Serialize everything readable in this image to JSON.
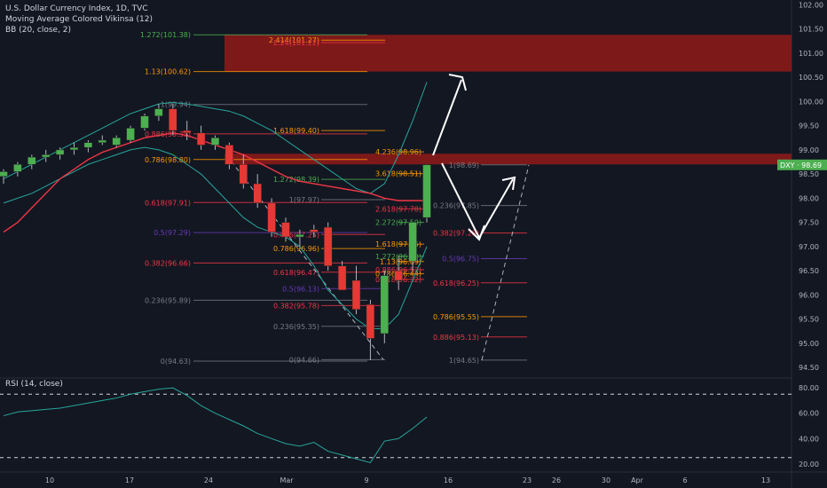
{
  "legend": {
    "line1": "U.S. Dollar Currency Index, 1D, TVC",
    "line2": "Moving Average Colored Vikinsa (12)",
    "line3": "BB (20, close, 2)"
  },
  "rsi": {
    "label": "RSI (14, close)"
  },
  "colors": {
    "bg": "#131722",
    "up": "#4caf50",
    "down": "#e53935",
    "price_tag": "#4caf50"
  },
  "chart_data": [
    {
      "type": "candlestick",
      "symbol": "DXY",
      "price_tag": "DXY · 98.69",
      "last": 98.69,
      "y_ticks": [
        "102.00",
        "101.50",
        "101.00",
        "100.50",
        "100.00",
        "99.50",
        "99.00",
        "98.50",
        "98.00",
        "97.50",
        "97.00",
        "96.50",
        "96.00",
        "95.50",
        "95.00",
        "94.50"
      ],
      "x_ticks": [
        "10",
        "17",
        "24",
        "Mar",
        "9",
        "16",
        "23",
        "26",
        "30",
        "Apr",
        "6",
        "13"
      ],
      "ohlc": [
        [
          98.45,
          98.6,
          98.3,
          98.55
        ],
        [
          98.55,
          98.75,
          98.45,
          98.7
        ],
        [
          98.7,
          98.9,
          98.6,
          98.85
        ],
        [
          98.85,
          99.0,
          98.75,
          98.9
        ],
        [
          98.9,
          99.05,
          98.8,
          99.0
        ],
        [
          99.0,
          99.15,
          98.9,
          99.05
        ],
        [
          99.05,
          99.2,
          98.95,
          99.15
        ],
        [
          99.15,
          99.3,
          99.1,
          99.2
        ],
        [
          99.1,
          99.3,
          99.05,
          99.25
        ],
        [
          99.2,
          99.5,
          99.15,
          99.45
        ],
        [
          99.45,
          99.75,
          99.4,
          99.7
        ],
        [
          99.7,
          99.95,
          99.6,
          99.85
        ],
        [
          99.85,
          99.95,
          99.3,
          99.4
        ],
        [
          99.4,
          99.6,
          99.2,
          99.35
        ],
        [
          99.35,
          99.5,
          99.0,
          99.1
        ],
        [
          99.1,
          99.3,
          99.0,
          99.25
        ],
        [
          99.1,
          99.15,
          98.6,
          98.7
        ],
        [
          98.7,
          98.9,
          98.2,
          98.3
        ],
        [
          98.3,
          98.5,
          97.8,
          97.9
        ],
        [
          97.9,
          98.0,
          97.2,
          97.3
        ],
        [
          97.5,
          97.6,
          97.1,
          97.2
        ],
        [
          97.2,
          97.35,
          97.0,
          97.25
        ],
        [
          97.35,
          97.45,
          97.2,
          97.3
        ],
        [
          97.4,
          97.5,
          96.5,
          96.6
        ],
        [
          96.6,
          96.7,
          96.1,
          96.1
        ],
        [
          96.3,
          96.6,
          95.6,
          95.7
        ],
        [
          95.8,
          95.9,
          94.65,
          95.1
        ],
        [
          95.2,
          96.5,
          95.0,
          96.4
        ],
        [
          96.5,
          96.8,
          96.1,
          96.3
        ],
        [
          96.7,
          97.5,
          96.5,
          97.5
        ],
        [
          97.6,
          98.7,
          97.5,
          98.69
        ]
      ],
      "fib_left": [
        {
          "text": "1.272(101.38)",
          "value": 101.38,
          "color": "#4caf50"
        },
        {
          "text": "1.13(100.62)",
          "value": 100.62,
          "color": "#ff9800"
        },
        {
          "text": "1(99.94)",
          "value": 99.94,
          "color": "#787b86"
        },
        {
          "text": "0.886(99.33)",
          "value": 99.33,
          "color": "#f23645"
        },
        {
          "text": "0.786(98.80)",
          "value": 98.8,
          "color": "#ff9800"
        },
        {
          "text": "0.618(97.91)",
          "value": 97.91,
          "color": "#f23645"
        },
        {
          "text": "0.5(97.29)",
          "value": 97.29,
          "color": "#673ab7"
        },
        {
          "text": "0.382(96.66)",
          "value": 96.66,
          "color": "#f23645"
        },
        {
          "text": "0.236(95.89)",
          "value": 95.89,
          "color": "#787b86"
        },
        {
          "text": "0(94.63)",
          "value": 94.63,
          "color": "#787b86"
        }
      ],
      "fib_mid": [
        {
          "text": "2.414(101.27)",
          "value": 101.27,
          "color": "#ff9800"
        },
        {
          "text": "2.24(101.22)",
          "value": 101.22,
          "color": "#f23645"
        },
        {
          "text": "1.618(99.40)",
          "value": 99.4,
          "color": "#ff9800"
        },
        {
          "text": "1.272(98.39)",
          "value": 98.39,
          "color": "#4caf50"
        },
        {
          "text": "1(97.97)",
          "value": 97.97,
          "color": "#787b86"
        },
        {
          "text": "0.886(97.25)",
          "value": 97.25,
          "color": "#f23645"
        },
        {
          "text": "0.786(96.96)",
          "value": 96.96,
          "color": "#ff9800"
        },
        {
          "text": "0.618(96.47)",
          "value": 96.47,
          "color": "#f23645"
        },
        {
          "text": "0.5(96.13)",
          "value": 96.13,
          "color": "#673ab7"
        },
        {
          "text": "0.382(95.78)",
          "value": 95.78,
          "color": "#f23645"
        },
        {
          "text": "0.236(95.35)",
          "value": 95.35,
          "color": "#787b86"
        },
        {
          "text": "0(94.66)",
          "value": 94.66,
          "color": "#787b86"
        }
      ],
      "fib_right": [
        {
          "text": "4.236(98.96)",
          "value": 98.96,
          "color": "#ff9800"
        },
        {
          "text": "3.618(98.51)",
          "value": 98.51,
          "color": "#ff9800"
        },
        {
          "text": "2.618(97.78)",
          "value": 97.78,
          "color": "#f23645"
        },
        {
          "text": "2.272(97.50)",
          "value": 97.5,
          "color": "#4caf50"
        },
        {
          "text": "1.618(97.05)",
          "value": 97.05,
          "color": "#ff9800"
        },
        {
          "text": "1.272(96.80)",
          "value": 96.8,
          "color": "#4caf50"
        },
        {
          "text": "1.13(96.69)",
          "value": 96.69,
          "color": "#ff9800"
        },
        {
          "text": "0.886(96.52)",
          "value": 96.52,
          "color": "#f23645"
        },
        {
          "text": "0.786(96.44)",
          "value": 96.44,
          "color": "#ff9800"
        },
        {
          "text": "0.618(96.32)",
          "value": 96.32,
          "color": "#f23645"
        }
      ],
      "fib_proj": [
        {
          "text": "1(98.69)",
          "value": 98.69,
          "color": "#787b86"
        },
        {
          "text": "0.236(97.85)",
          "value": 97.85,
          "color": "#787b86"
        },
        {
          "text": "0.382(97.28)",
          "value": 97.28,
          "color": "#f23645"
        },
        {
          "text": "0.5(96.75)",
          "value": 96.75,
          "color": "#673ab7"
        },
        {
          "text": "0.618(96.25)",
          "value": 96.25,
          "color": "#f23645"
        },
        {
          "text": "0.786(95.55)",
          "value": 95.55,
          "color": "#ff9800"
        },
        {
          "text": "0.886(95.13)",
          "value": 95.13,
          "color": "#f23645"
        },
        {
          "text": "1(94.65)",
          "value": 94.65,
          "color": "#787b86"
        }
      ],
      "zones": [
        {
          "from": 100.62,
          "to": 101.38,
          "color": "#8b1a1a"
        },
        {
          "from": 98.7,
          "to": 98.92,
          "color": "#8b1a1a"
        }
      ],
      "ma_red": [
        97.3,
        97.5,
        97.8,
        98.1,
        98.4,
        98.6,
        98.8,
        98.95,
        99.05,
        99.15,
        99.25,
        99.3,
        99.35,
        99.3,
        99.2,
        99.1,
        99.0,
        98.9,
        98.75,
        98.6,
        98.45,
        98.35,
        98.3,
        98.25,
        98.2,
        98.15,
        98.1,
        98.0,
        97.95,
        97.95,
        97.95
      ],
      "bb_upper": [
        98.4,
        98.55,
        98.7,
        98.85,
        99.0,
        99.15,
        99.3,
        99.45,
        99.6,
        99.75,
        99.85,
        99.95,
        99.98,
        99.95,
        99.9,
        99.85,
        99.8,
        99.7,
        99.55,
        99.4,
        99.2,
        99.0,
        98.8,
        98.6,
        98.4,
        98.2,
        98.1,
        98.3,
        98.9,
        99.6,
        100.4
      ],
      "bb_lower": [
        97.9,
        98.0,
        98.1,
        98.25,
        98.4,
        98.55,
        98.7,
        98.8,
        98.9,
        99.0,
        99.05,
        99.0,
        98.9,
        98.7,
        98.5,
        98.2,
        97.9,
        97.6,
        97.4,
        97.3,
        97.2,
        97.0,
        96.6,
        96.1,
        95.8,
        95.5,
        95.3,
        95.3,
        95.6,
        96.3,
        97.0
      ],
      "rsi": {
        "ylim": [
          15,
          85
        ],
        "y_ticks": [
          80,
          60,
          40,
          20
        ],
        "levels": [
          75,
          25
        ],
        "values": [
          58,
          61,
          62,
          63,
          64,
          66,
          68,
          70,
          72,
          75,
          77,
          79,
          80,
          74,
          66,
          60,
          55,
          50,
          44,
          40,
          36,
          34,
          37,
          30,
          27,
          24,
          21,
          38,
          40,
          48,
          57
        ]
      }
    }
  ]
}
